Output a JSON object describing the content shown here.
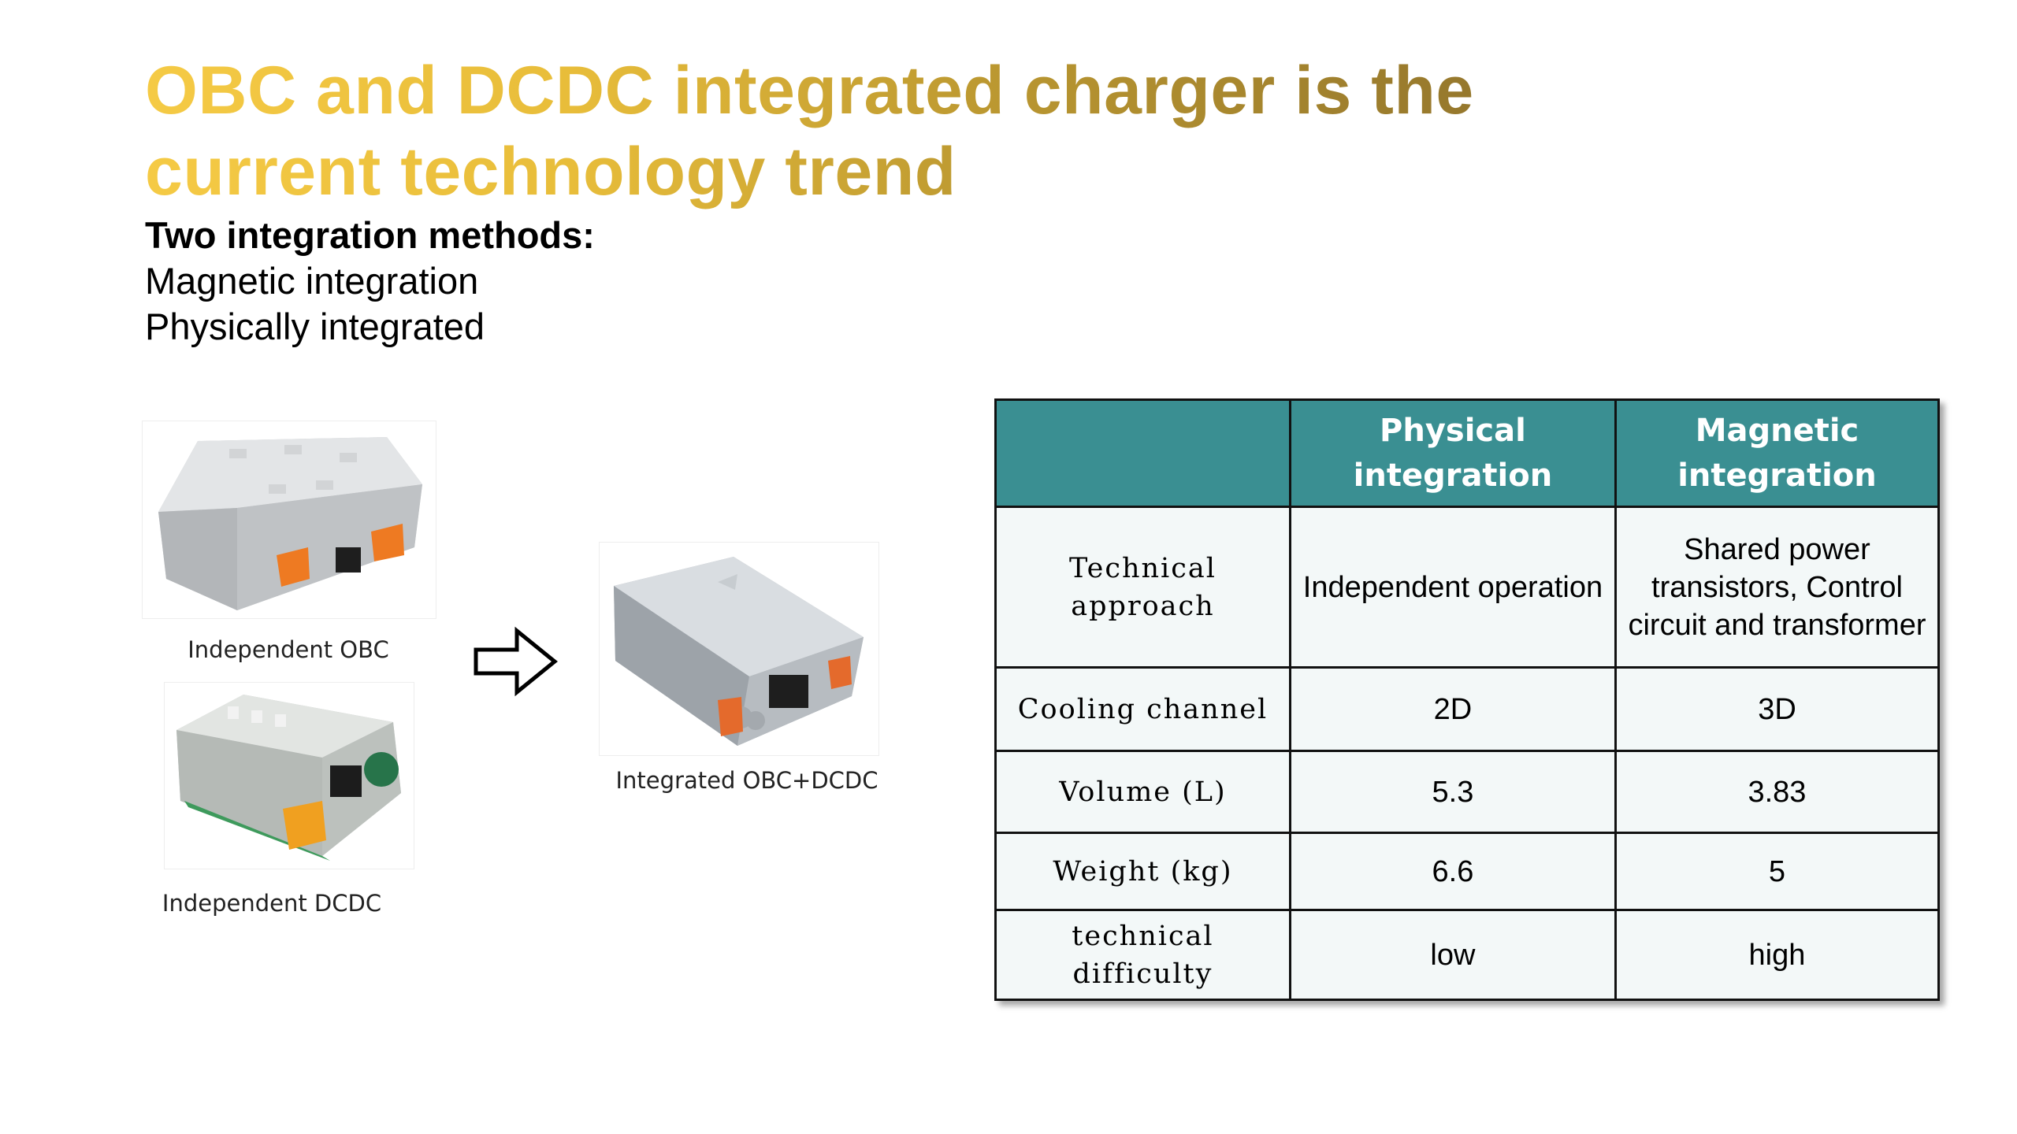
{
  "slide": {
    "title": "OBC and DCDC integrated charger is the current technology trend",
    "subheading": "Two integration methods:",
    "methods": [
      "Magnetic integration",
      "Physically integrated"
    ]
  },
  "images": {
    "obc_caption": "Independent OBC",
    "dcdc_caption": "Independent DCDC",
    "integrated_caption": "Integrated OBC+DCDC"
  },
  "table": {
    "headers": [
      "",
      "Physical integration",
      "Magnetic integration"
    ],
    "rows": [
      [
        "Technical approach",
        "Independent operation",
        "Shared power transistors, Control circuit and transformer"
      ],
      [
        "Cooling channel",
        "2D",
        "3D"
      ],
      [
        "Volume (L)",
        "5.3",
        "3.83"
      ],
      [
        "Weight (kg)",
        "6.6",
        "5"
      ],
      [
        "technical difficulty",
        "low",
        "high"
      ]
    ]
  },
  "colors": {
    "title_gradient": [
      "#f5ca45",
      "#8f722c"
    ],
    "table_header": "#3a8f92",
    "table_cell": "#f3f8f8"
  }
}
